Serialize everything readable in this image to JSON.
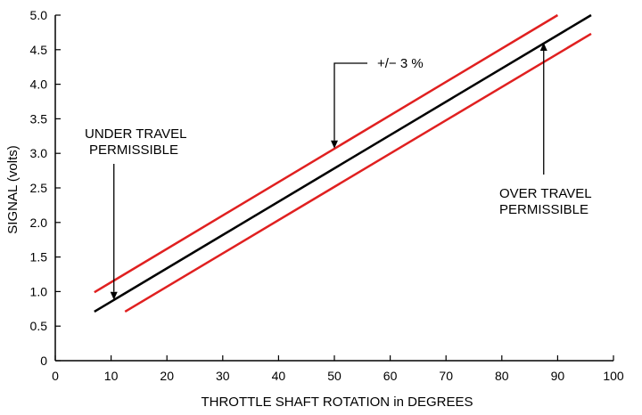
{
  "chart_data": {
    "type": "line",
    "title": "",
    "xlabel": "THROTTLE SHAFT ROTATION in DEGREES",
    "ylabel": "SIGNAL (volts)",
    "xlim": [
      0,
      100
    ],
    "ylim": [
      0,
      5
    ],
    "x_ticks": [
      0,
      10,
      20,
      30,
      40,
      50,
      60,
      70,
      80,
      90,
      100
    ],
    "y_ticks": [
      0,
      0.5,
      1.0,
      1.5,
      2.0,
      2.5,
      3.0,
      3.5,
      4.0,
      4.5,
      5.0
    ],
    "x_tick_labels": [
      "0",
      "10",
      "20",
      "30",
      "40",
      "50",
      "60",
      "70",
      "80",
      "90",
      "100"
    ],
    "y_tick_labels": [
      "0",
      "0.5",
      "1.0",
      "1.5",
      "2.0",
      "2.5",
      "3.0",
      "3.5",
      "4.0",
      "4.5",
      "5.0"
    ],
    "grid": false,
    "legend": "none",
    "colors": {
      "nominal": "#000000",
      "tolerance": "#e02020",
      "axis": "#000000"
    },
    "series": [
      {
        "role": "upper-tolerance",
        "color": "#e02020",
        "x": [
          7,
          90
        ],
        "y": [
          0.99,
          5.0
        ]
      },
      {
        "role": "nominal",
        "color": "#000000",
        "x": [
          7,
          96
        ],
        "y": [
          0.71,
          5.0
        ]
      },
      {
        "role": "lower-tolerance",
        "color": "#e02020",
        "x": [
          12.5,
          96
        ],
        "y": [
          0.71,
          4.73
        ]
      }
    ],
    "annotations": [
      {
        "id": "tolerance",
        "text": "+/− 3 %",
        "arrow_to": [
          50,
          3.07
        ]
      },
      {
        "id": "under-travel",
        "lines": [
          "UNDER TRAVEL",
          "PERMISSIBLE"
        ],
        "arrow_to": [
          10.5,
          0.88
        ]
      },
      {
        "id": "over-travel",
        "lines": [
          "OVER TRAVEL",
          "PERMISSIBLE"
        ],
        "arrow_to": [
          87.5,
          4.6
        ]
      }
    ]
  }
}
